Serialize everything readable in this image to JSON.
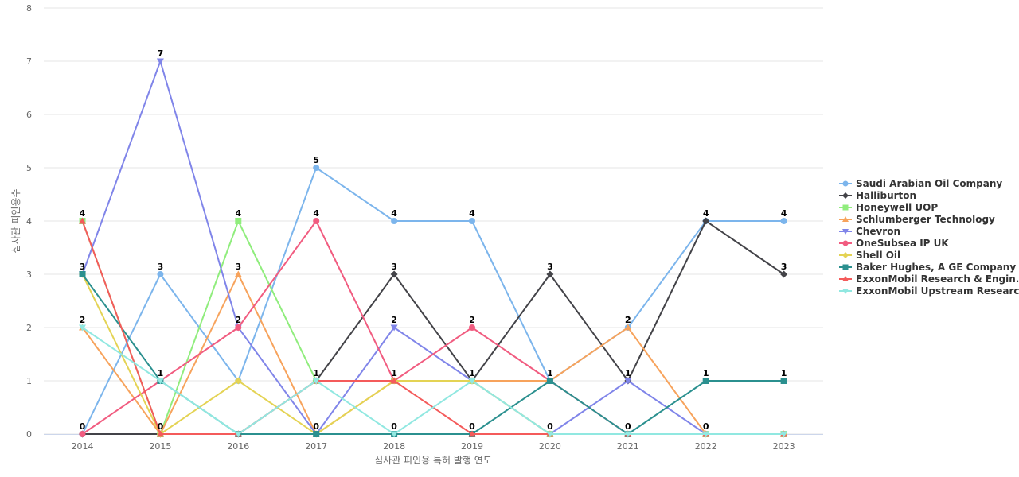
{
  "chart_data": {
    "type": "line",
    "title": "",
    "xlabel": "심사관 피인용 특허 발행 연도",
    "ylabel": "심사관 피인용수",
    "x": [
      "2014",
      "2015",
      "2016",
      "2017",
      "2018",
      "2019",
      "2020",
      "2021",
      "2022",
      "2023"
    ],
    "ylim": [
      0,
      8
    ],
    "yticks": [
      "0",
      "1",
      "2",
      "3",
      "4",
      "5",
      "6",
      "7",
      "8"
    ],
    "grid": "horizontal",
    "legend_position": "right",
    "series": [
      {
        "name": "Saudi Arabian Oil Company",
        "color": "#7cb5ec",
        "marker": "circle",
        "values": [
          0,
          3,
          1,
          5,
          4,
          4,
          1,
          2,
          4,
          4
        ],
        "labeled": [
          true,
          true,
          false,
          true,
          true,
          true,
          false,
          true,
          true,
          true
        ]
      },
      {
        "name": "Halliburton",
        "color": "#434348",
        "marker": "diamond",
        "values": [
          0,
          0,
          0,
          1,
          3,
          1,
          3,
          1,
          4,
          3
        ],
        "labeled": [
          false,
          false,
          false,
          true,
          true,
          false,
          true,
          false,
          false,
          true
        ]
      },
      {
        "name": "Honeywell UOP",
        "color": "#90ed7d",
        "marker": "square",
        "values": [
          4,
          0,
          4,
          1,
          1,
          1,
          0,
          0,
          0,
          0
        ],
        "labeled": [
          true,
          true,
          true,
          false,
          false,
          false,
          false,
          false,
          false,
          false
        ]
      },
      {
        "name": "Schlumberger Technology",
        "color": "#f7a35c",
        "marker": "triangle",
        "values": [
          2,
          0,
          3,
          0,
          1,
          1,
          1,
          2,
          0,
          0
        ],
        "labeled": [
          true,
          false,
          true,
          false,
          false,
          false,
          false,
          true,
          true,
          false
        ]
      },
      {
        "name": "Chevron",
        "color": "#8085e9",
        "marker": "triangle-down",
        "values": [
          3,
          7,
          2,
          0,
          2,
          1,
          0,
          1,
          0,
          0
        ],
        "labeled": [
          false,
          true,
          false,
          false,
          true,
          false,
          false,
          true,
          false,
          false
        ]
      },
      {
        "name": "OneSubsea IP UK",
        "color": "#f15c80",
        "marker": "circle",
        "values": [
          0,
          1,
          2,
          4,
          1,
          2,
          1,
          0,
          0,
          0
        ],
        "labeled": [
          false,
          false,
          true,
          true,
          false,
          true,
          false,
          false,
          false,
          false
        ]
      },
      {
        "name": "Shell Oil",
        "color": "#e4d354",
        "marker": "diamond",
        "values": [
          3,
          0,
          1,
          0,
          1,
          1,
          0,
          0,
          0,
          0
        ],
        "labeled": [
          false,
          false,
          false,
          false,
          false,
          false,
          false,
          false,
          false,
          false
        ]
      },
      {
        "name": "Baker Hughes, A GE Company ...",
        "color": "#2b908f",
        "marker": "square",
        "values": [
          3,
          1,
          0,
          0,
          0,
          0,
          1,
          0,
          1,
          1
        ],
        "labeled": [
          true,
          false,
          false,
          true,
          true,
          true,
          true,
          true,
          true,
          true
        ]
      },
      {
        "name": "ExxonMobil Research & Engin...",
        "color": "#f45b5b",
        "marker": "triangle",
        "values": [
          4,
          0,
          0,
          1,
          1,
          0,
          0,
          0,
          0,
          0
        ],
        "labeled": [
          false,
          false,
          false,
          false,
          true,
          false,
          false,
          false,
          false,
          false
        ]
      },
      {
        "name": "ExxonMobil Upstream Researc...",
        "color": "#91e8e1",
        "marker": "triangle-down",
        "values": [
          2,
          1,
          0,
          1,
          0,
          1,
          0,
          0,
          0,
          0
        ],
        "labeled": [
          false,
          true,
          false,
          false,
          false,
          true,
          true,
          false,
          false,
          false
        ]
      }
    ]
  }
}
